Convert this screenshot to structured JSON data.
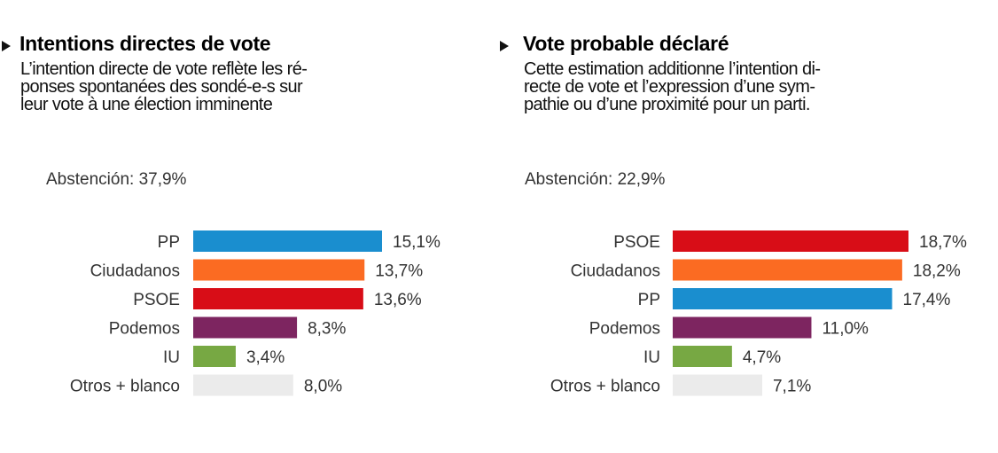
{
  "colors": {
    "PP": "#1a8ecf",
    "Ciudadanos": "#fb6b22",
    "PSOE": "#d80d17",
    "Podemos": "#7d2560",
    "IU": "#77a843",
    "Otros + blanco": "#ebebeb"
  },
  "chart_data": [
    {
      "type": "bar",
      "orientation": "horizontal",
      "title": "Intentions directes de vote",
      "subtitle": [
        "L’intention directe de vote reflète les ré-",
        "ponses spontanées des sondé-e-s sur",
        "leur vote à une élection imminente"
      ],
      "annotation": "Abstención: 37,9%",
      "categories": [
        "PP",
        "Ciudadanos",
        "PSOE",
        "Podemos",
        "IU",
        "Otros + blanco"
      ],
      "values": [
        15.1,
        13.7,
        13.6,
        8.3,
        3.4,
        8.0
      ],
      "value_labels": [
        "15,1%",
        "13,7%",
        "13,6%",
        "8,3%",
        "3,4%",
        "8,0%"
      ],
      "xlim": [
        0,
        15.1
      ],
      "grid": false
    },
    {
      "type": "bar",
      "orientation": "horizontal",
      "title": "Vote probable déclaré",
      "subtitle": [
        "Cette estimation additionne l’intention di-",
        "recte de vote et l’expression d’une sym-",
        "pathie ou d’une proximité pour un parti."
      ],
      "annotation": "Abstención: 22,9%",
      "categories": [
        "PSOE",
        "Ciudadanos",
        "PP",
        "Podemos",
        "IU",
        "Otros + blanco"
      ],
      "values": [
        18.7,
        18.2,
        17.4,
        11.0,
        4.7,
        7.1
      ],
      "value_labels": [
        "18,7%",
        "18,2%",
        "17,4%",
        "11,0%",
        "4,7%",
        "7,1%"
      ],
      "xlim": [
        0,
        18.7
      ],
      "grid": false
    }
  ]
}
